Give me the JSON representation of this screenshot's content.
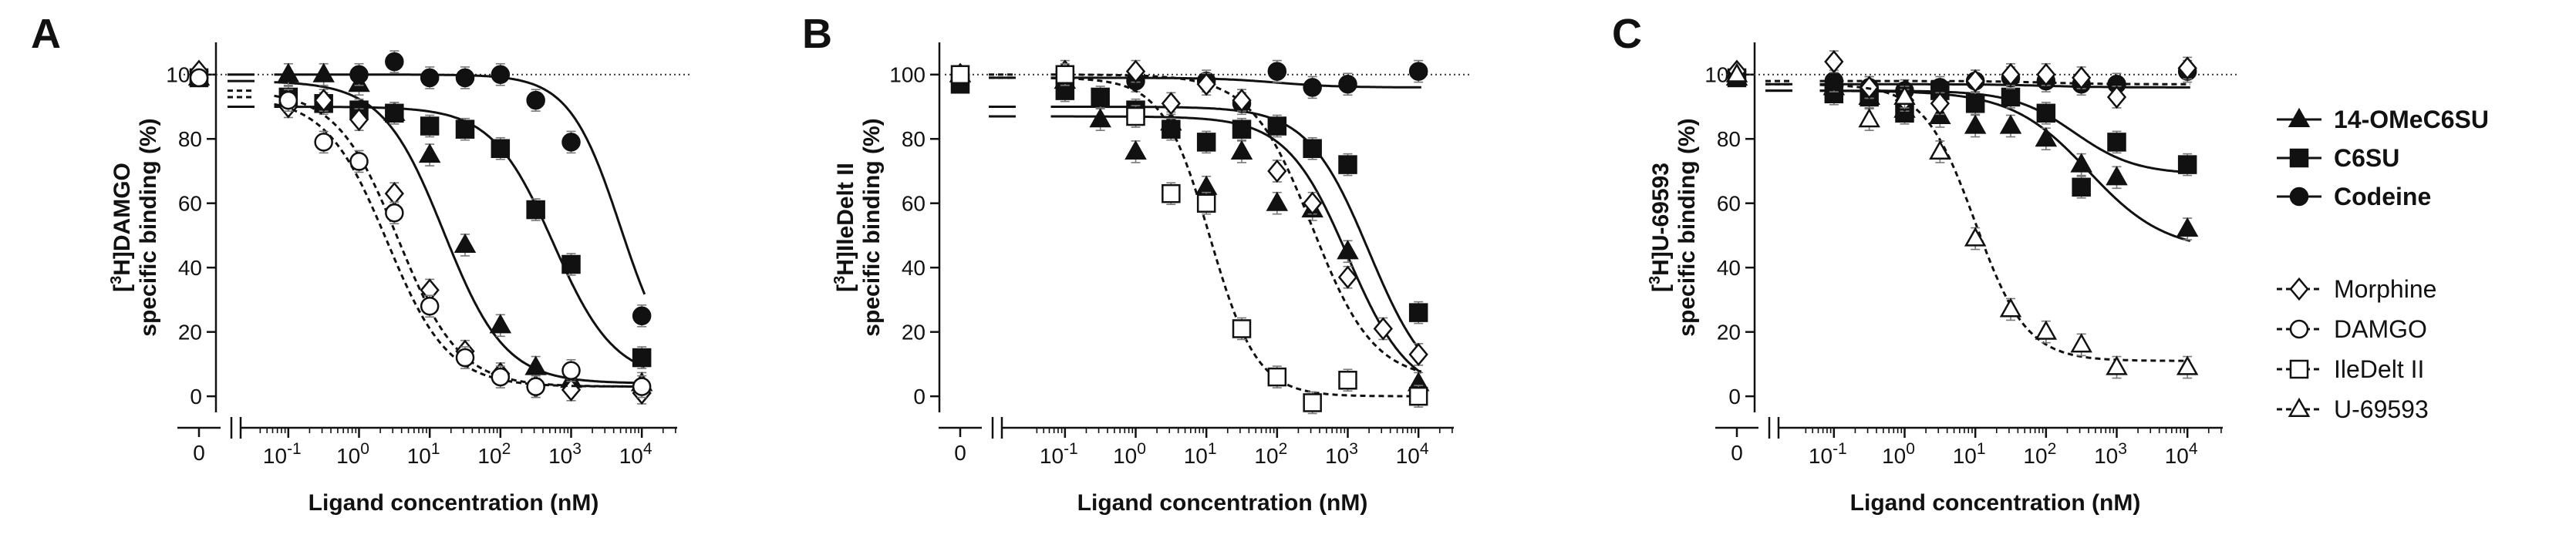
{
  "figure": {
    "legend": {
      "entries": [
        {
          "key": "omec6su",
          "label": "14-OMeC6SU",
          "bold": true
        },
        {
          "key": "c6su",
          "label": "C6SU",
          "bold": true
        },
        {
          "key": "codeine",
          "label": "Codeine",
          "bold": true
        },
        {
          "key": "morphine",
          "label": "Morphine",
          "bold": false
        },
        {
          "key": "damgo",
          "label": "DAMGO",
          "bold": false
        },
        {
          "key": "iledelt",
          "label": "IleDelt II",
          "bold": false
        },
        {
          "key": "u69593",
          "label": "U-69593",
          "bold": false
        }
      ]
    }
  },
  "chart_data": [
    {
      "type": "scatter",
      "panel_label": "A",
      "title": "",
      "xlabel": "Ligand concentration (nM)",
      "ylabel_line1": "[3H]DAMGO",
      "ylabel_line2": "specific binding (%)",
      "x_scale": "log10 (nM) with a zero point on a broken axis",
      "xlim_log10": [
        -1.5,
        4.5
      ],
      "ylim": [
        -5,
        110
      ],
      "yticks": [
        0,
        20,
        40,
        60,
        80,
        100
      ],
      "ytick_labels": [
        "0",
        "20",
        "40",
        "60",
        "80",
        "100"
      ],
      "xticks_log10": [
        -1,
        0,
        1,
        2,
        3,
        4
      ],
      "xtick_labels": [
        [
          "10",
          "-1"
        ],
        [
          "10",
          "0"
        ],
        [
          "10",
          "1"
        ],
        [
          "10",
          "2"
        ],
        [
          "10",
          "3"
        ],
        [
          "10",
          "4"
        ]
      ],
      "zero_tick_label": "0",
      "reference_line": 100,
      "series": [
        {
          "key": "omec6su",
          "name": "14-OMeC6SU",
          "zero": 99,
          "points": [
            [
              -1,
              100
            ],
            [
              -0.5,
              100
            ],
            [
              0,
              97
            ],
            [
              0.5,
              88
            ],
            [
              1,
              75
            ],
            [
              1.5,
              47
            ],
            [
              2,
              22
            ],
            [
              2.5,
              9
            ],
            [
              3,
              5
            ],
            [
              4,
              4
            ]
          ],
          "fit": {
            "top": 98,
            "bottom": 4,
            "log_ic50": 1.2,
            "hill": 1
          }
        },
        {
          "key": "c6su",
          "name": "C6SU",
          "zero": 99,
          "points": [
            [
              -1,
              93
            ],
            [
              -0.5,
              91
            ],
            [
              0,
              89
            ],
            [
              0.5,
              88
            ],
            [
              1,
              84
            ],
            [
              1.5,
              83
            ],
            [
              2,
              77
            ],
            [
              2.5,
              58
            ],
            [
              3,
              41
            ],
            [
              4,
              12
            ]
          ],
          "fit": {
            "top": 90,
            "bottom": 5,
            "log_ic50": 2.75,
            "hill": 1
          }
        },
        {
          "key": "codeine",
          "name": "Codeine",
          "zero": 99,
          "points": [
            [
              0,
              100
            ],
            [
              0.5,
              104
            ],
            [
              1,
              99
            ],
            [
              1.5,
              99
            ],
            [
              2,
              100
            ],
            [
              2.5,
              92
            ],
            [
              3,
              79
            ],
            [
              4,
              25
            ]
          ],
          "fit": {
            "top": 100,
            "bottom": 5,
            "log_ic50": 3.7,
            "hill": 1.2
          }
        },
        {
          "key": "morphine",
          "name": "Morphine",
          "zero": 101,
          "points": [
            [
              -1,
              90
            ],
            [
              -0.5,
              92
            ],
            [
              0,
              86
            ],
            [
              0.5,
              63
            ],
            [
              1,
              33
            ],
            [
              1.5,
              14
            ],
            [
              2,
              7
            ],
            [
              2.5,
              3
            ],
            [
              3,
              2
            ],
            [
              4,
              1
            ]
          ],
          "fit": {
            "top": 95,
            "bottom": 3,
            "log_ic50": 0.55,
            "hill": 1
          }
        },
        {
          "key": "damgo",
          "name": "DAMGO",
          "zero": 99,
          "points": [
            [
              -1,
              92
            ],
            [
              -0.5,
              79
            ],
            [
              0,
              73
            ],
            [
              0.5,
              57
            ],
            [
              1,
              28
            ],
            [
              1.5,
              12
            ],
            [
              2,
              6
            ],
            [
              2.5,
              3
            ],
            [
              3,
              8
            ],
            [
              4,
              3
            ]
          ],
          "fit": {
            "top": 93,
            "bottom": 3,
            "log_ic50": 0.4,
            "hill": 1
          }
        }
      ]
    },
    {
      "type": "scatter",
      "panel_label": "B",
      "title": "",
      "xlabel": "Ligand concentration (nM)",
      "ylabel_line1": "[3H]IleDelt II",
      "ylabel_line2": "specific binding (%)",
      "x_scale": "log10 (nM) with a zero point on a broken axis",
      "xlim_log10": [
        -1.5,
        4.5
      ],
      "ylim": [
        -5,
        110
      ],
      "yticks": [
        0,
        20,
        40,
        60,
        80,
        100
      ],
      "ytick_labels": [
        "0",
        "20",
        "40",
        "60",
        "80",
        "100"
      ],
      "xticks_log10": [
        -1,
        0,
        1,
        2,
        3,
        4
      ],
      "xtick_labels": [
        [
          "10",
          "-1"
        ],
        [
          "10",
          "0"
        ],
        [
          "10",
          "1"
        ],
        [
          "10",
          "2"
        ],
        [
          "10",
          "3"
        ],
        [
          "10",
          "4"
        ]
      ],
      "zero_tick_label": "0",
      "reference_line": 100,
      "series": [
        {
          "key": "omec6su",
          "name": "14-OMeC6SU",
          "zero": 100,
          "points": [
            [
              -1,
              98
            ],
            [
              -0.5,
              86
            ],
            [
              0,
              76
            ],
            [
              0.5,
              85
            ],
            [
              1,
              65
            ],
            [
              1.5,
              76
            ],
            [
              2,
              60
            ],
            [
              2.5,
              58
            ],
            [
              3,
              45
            ],
            [
              4,
              4
            ]
          ],
          "fit": {
            "top": 87,
            "bottom": 0,
            "log_ic50": 3.0,
            "hill": 1
          }
        },
        {
          "key": "c6su",
          "name": "C6SU",
          "zero": 97,
          "points": [
            [
              -1,
              95
            ],
            [
              -0.5,
              93
            ],
            [
              0,
              89
            ],
            [
              0.5,
              83
            ],
            [
              1,
              79
            ],
            [
              1.5,
              83
            ],
            [
              2,
              84
            ],
            [
              2.5,
              77
            ],
            [
              3,
              72
            ],
            [
              4,
              26
            ]
          ],
          "fit": {
            "top": 90,
            "bottom": 0,
            "log_ic50": 3.3,
            "hill": 1
          }
        },
        {
          "key": "codeine",
          "name": "Codeine",
          "zero": 100,
          "points": [
            [
              -1,
              100
            ],
            [
              0,
              98
            ],
            [
              1,
              98
            ],
            [
              1.5,
              91
            ],
            [
              2,
              101
            ],
            [
              2.5,
              96
            ],
            [
              3,
              97
            ],
            [
              4,
              101
            ]
          ],
          "fit": {
            "top": 99,
            "bottom": 96,
            "log_ic50": 2,
            "hill": 1
          }
        },
        {
          "key": "morphine",
          "name": "Morphine",
          "zero": 100,
          "points": [
            [
              -1,
              101
            ],
            [
              0,
              101
            ],
            [
              0.5,
              91
            ],
            [
              1,
              97
            ],
            [
              1.5,
              92
            ],
            [
              2,
              70
            ],
            [
              2.5,
              60
            ],
            [
              3,
              37
            ],
            [
              3.5,
              21
            ],
            [
              4,
              13
            ]
          ],
          "fit": {
            "top": 100,
            "bottom": 5,
            "log_ic50": 2.5,
            "hill": 1
          }
        },
        {
          "key": "iledelt",
          "name": "IleDelt II",
          "zero": 100,
          "points": [
            [
              -1,
              100
            ],
            [
              0,
              87
            ],
            [
              0.5,
              63
            ],
            [
              1,
              60
            ],
            [
              1.5,
              21
            ],
            [
              2,
              6
            ],
            [
              2.5,
              -2
            ],
            [
              3,
              5
            ],
            [
              4,
              0
            ]
          ],
          "fit": {
            "top": 99,
            "bottom": 0,
            "log_ic50": 1.05,
            "hill": 1.3
          }
        }
      ]
    },
    {
      "type": "scatter",
      "panel_label": "C",
      "title": "",
      "xlabel": "Ligand concentration (nM)",
      "ylabel_line1": "[3H]U-69593",
      "ylabel_line2": "specific binding (%)",
      "x_scale": "log10 (nM) with a zero point on a broken axis",
      "xlim_log10": [
        -1.5,
        4.5
      ],
      "ylim": [
        -5,
        110
      ],
      "yticks": [
        0,
        20,
        40,
        60,
        80,
        100
      ],
      "ytick_labels": [
        "0",
        "20",
        "40",
        "60",
        "80",
        "100"
      ],
      "xticks_log10": [
        -1,
        0,
        1,
        2,
        3,
        4
      ],
      "xtick_labels": [
        [
          "10",
          "-1"
        ],
        [
          "10",
          "0"
        ],
        [
          "10",
          "1"
        ],
        [
          "10",
          "2"
        ],
        [
          "10",
          "3"
        ],
        [
          "10",
          "4"
        ]
      ],
      "zero_tick_label": "0",
      "reference_line": 100,
      "series": [
        {
          "key": "omec6su",
          "name": "14-OMeC6SU",
          "zero": 99,
          "points": [
            [
              -1,
              96
            ],
            [
              -0.5,
              93
            ],
            [
              0,
              89
            ],
            [
              0.5,
              87
            ],
            [
              1,
              84
            ],
            [
              1.5,
              84
            ],
            [
              2,
              80
            ],
            [
              2.5,
              72
            ],
            [
              3,
              68
            ],
            [
              4,
              52
            ]
          ],
          "fit": {
            "top": 95,
            "bottom": 45,
            "log_ic50": 2.6,
            "hill": 0.8
          }
        },
        {
          "key": "c6su",
          "name": "C6SU",
          "zero": 99,
          "points": [
            [
              -1,
              94
            ],
            [
              -0.5,
              93
            ],
            [
              0,
              88
            ],
            [
              0.5,
              95
            ],
            [
              1,
              91
            ],
            [
              1.5,
              93
            ],
            [
              2,
              88
            ],
            [
              2.5,
              65
            ],
            [
              3,
              79
            ],
            [
              4,
              72
            ]
          ],
          "fit": {
            "top": 95,
            "bottom": 69,
            "log_ic50": 2.4,
            "hill": 1
          }
        },
        {
          "key": "codeine",
          "name": "Codeine",
          "zero": 100,
          "points": [
            [
              -1,
              98
            ],
            [
              -0.5,
              96
            ],
            [
              0,
              95
            ],
            [
              0.5,
              96
            ],
            [
              1,
              98
            ],
            [
              1.5,
              99
            ],
            [
              2,
              98
            ],
            [
              2.5,
              97
            ],
            [
              3,
              97
            ],
            [
              4,
              101
            ]
          ],
          "fit": {
            "top": 97,
            "bottom": 96,
            "log_ic50": 2,
            "hill": 1
          }
        },
        {
          "key": "morphine",
          "name": "Morphine",
          "zero": 101,
          "points": [
            [
              -1,
              104
            ],
            [
              -0.5,
              96
            ],
            [
              0,
              92
            ],
            [
              0.5,
              91
            ],
            [
              1,
              98
            ],
            [
              1.5,
              100
            ],
            [
              2,
              100
            ],
            [
              2.5,
              99
            ],
            [
              3,
              93
            ],
            [
              4,
              102
            ]
          ],
          "fit": {
            "top": 98,
            "bottom": 97,
            "log_ic50": 2,
            "hill": 1
          }
        },
        {
          "key": "u69593",
          "name": "U-69593",
          "zero": 100,
          "points": [
            [
              -0.5,
              86
            ],
            [
              0,
              93
            ],
            [
              0.5,
              76
            ],
            [
              1,
              49
            ],
            [
              1.5,
              27
            ],
            [
              2,
              20
            ],
            [
              2.5,
              16
            ],
            [
              3,
              9
            ],
            [
              4,
              9
            ]
          ],
          "fit": {
            "top": 97,
            "bottom": 11,
            "log_ic50": 1.0,
            "hill": 1.2
          }
        }
      ]
    }
  ]
}
